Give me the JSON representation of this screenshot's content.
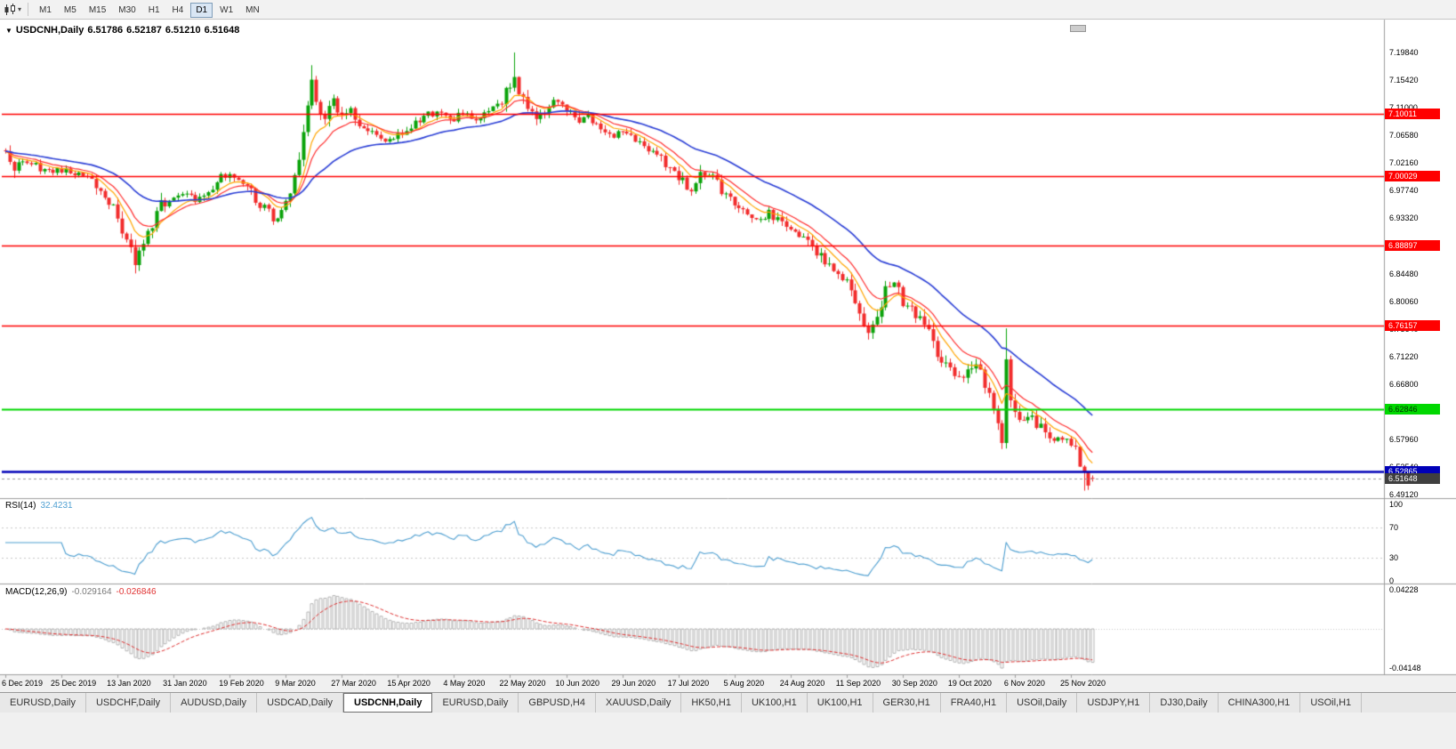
{
  "colors": {
    "bull": "#0AA30A",
    "bear": "#F22C2C",
    "level_red": "#FF0000",
    "level_green": "#00D800",
    "level_blue": "#0000B8",
    "current_line": "#9A9A9A",
    "current_tag_bg": "#3F3F3F",
    "rsi_line": "#4E9FD1",
    "macd_hist": "#B4B4B4",
    "macd_signal": "#E03232"
  },
  "toolbar": {
    "chart_type_icon": "candlestick-chart-icon",
    "dropdown_glyph": "▾",
    "timeframes": [
      "M1",
      "M5",
      "M15",
      "M30",
      "H1",
      "H4",
      "D1",
      "W1",
      "MN"
    ],
    "active_timeframe": "D1"
  },
  "chart": {
    "collapse_icon": "▼",
    "title_symbol": "USDCNH,Daily",
    "ohlc": {
      "open": "6.51786",
      "high": "6.52187",
      "low": "6.51210",
      "close": "6.51648"
    },
    "price_axis_labels": [
      "7.19840",
      "7.15420",
      "7.11000",
      "7.06580",
      "7.02160",
      "6.97740",
      "6.93320",
      "6.88900",
      "6.84480",
      "6.80060",
      "6.75640",
      "6.71220",
      "6.66800",
      "6.62380",
      "6.57960",
      "6.53540",
      "6.49120"
    ],
    "levels": [
      {
        "price": 7.10011,
        "label": "7.10011",
        "color": "#FF0000",
        "text_color": "#FFFFFF",
        "width": 1.6
      },
      {
        "price": 7.00029,
        "label": "7.00029",
        "color": "#FF0000",
        "text_color": "#FFFFFF",
        "width": 1.6
      },
      {
        "price": 6.88897,
        "label": "6.88897",
        "color": "#FF0000",
        "text_color": "#FFFFFF",
        "width": 1.6
      },
      {
        "price": 6.76157,
        "label": "6.76157",
        "color": "#FF0000",
        "text_color": "#FFFFFF",
        "width": 1.6
      },
      {
        "price": 6.62846,
        "label": "6.62846",
        "color": "#00D800",
        "text_color": "#003300",
        "width": 2
      },
      {
        "price": 6.52865,
        "label": "6.52865",
        "color": "#0000B8",
        "text_color": "#FFFFFF",
        "width": 2.6
      }
    ],
    "current_price": {
      "price": 6.51648,
      "label": "6.51648"
    },
    "date_labels": [
      "6 Dec 2019",
      "25 Dec 2019",
      "13 Jan 2020",
      "31 Jan 2020",
      "19 Feb 2020",
      "9 Mar 2020",
      "27 Mar 2020",
      "15 Apr 2020",
      "4 May 2020",
      "22 May 2020",
      "10 Jun 2020",
      "29 Jun 2020",
      "17 Jul 2020",
      "5 Aug 2020",
      "24 Aug 2020",
      "11 Sep 2020",
      "30 Sep 2020",
      "19 Oct 2020",
      "6 Nov 2020",
      "25 Nov 2020"
    ]
  },
  "rsi": {
    "name": "RSI(14)",
    "value": "32.4231",
    "line_color": "#4E9FD1",
    "axis": [
      {
        "v": 100,
        "label": "100"
      },
      {
        "v": 70,
        "label": "70"
      },
      {
        "v": 30,
        "label": "30"
      },
      {
        "v": 0,
        "label": "0"
      }
    ],
    "dashed_levels": [
      70,
      30
    ]
  },
  "macd": {
    "name": "MACD(12,26,9)",
    "value_main": "-0.029164",
    "value_signal": "-0.026846",
    "axis_top": "0.04228",
    "axis_bottom": "-0.04148"
  },
  "tabs": {
    "active_index": 4,
    "items": [
      "EURUSD,Daily",
      "USDCHF,Daily",
      "AUDUSD,Daily",
      "USDCAD,Daily",
      "USDCNH,Daily",
      "EURUSD,Daily",
      "GBPUSD,H4",
      "XAUUSD,Daily",
      "HK50,H1",
      "UK100,H1",
      "UK100,H1",
      "GER30,H1",
      "FRA40,H1",
      "USOil,Daily",
      "USDJPY,H1",
      "DJ30,Daily",
      "CHINA300,H1",
      "USOil,H1"
    ]
  },
  "chart_data": {
    "type": "candlestick",
    "symbol": "USDCNH",
    "timeframe": "Daily",
    "ylim": [
      6.4912,
      7.1984
    ],
    "y_ticks": [
      7.1984,
      7.1542,
      7.11,
      7.0658,
      7.0216,
      6.9774,
      6.9332,
      6.889,
      6.8448,
      6.8006,
      6.7564,
      6.7122,
      6.668,
      6.6238,
      6.5796,
      6.5354,
      6.4912
    ],
    "x_tick_indices": [
      0,
      13,
      26,
      39,
      52,
      65,
      78,
      91,
      104,
      117,
      130,
      143,
      156,
      169,
      182,
      195,
      208,
      221,
      234,
      247
    ],
    "candle_count": 253,
    "render_seed": 90210,
    "last_candle": {
      "open": 6.51786,
      "high": 6.52187,
      "low": 6.5121,
      "close": 6.51648
    },
    "support_resistance": [
      7.10011,
      7.00029,
      6.88897,
      6.76157,
      6.62846,
      6.52865
    ],
    "indicators": [
      {
        "name": "RSI",
        "period": 14,
        "current_value": 32.4231
      },
      {
        "name": "MACD",
        "fast": 12,
        "slow": 26,
        "signal": 9,
        "current_values": [
          -0.029164,
          -0.026846
        ]
      }
    ],
    "moving_averages": [
      {
        "period": 8,
        "color": "#FFA500",
        "width": 1.2
      },
      {
        "period": 13,
        "color": "#FF3030",
        "width": 1.2
      },
      {
        "period": 34,
        "color": "#2B3FD6",
        "width": 1.6
      }
    ],
    "price_anchors": [
      [
        0,
        7.042
      ],
      [
        2,
        7.018
      ],
      [
        5,
        7.024
      ],
      [
        8,
        7.012
      ],
      [
        11,
        7.008
      ],
      [
        14,
        7.012
      ],
      [
        17,
        7.004
      ],
      [
        20,
        6.996
      ],
      [
        23,
        6.972
      ],
      [
        26,
        6.94
      ],
      [
        28,
        6.896
      ],
      [
        30,
        6.866
      ],
      [
        32,
        6.886
      ],
      [
        34,
        6.924
      ],
      [
        36,
        6.952
      ],
      [
        38,
        6.966
      ],
      [
        41,
        6.976
      ],
      [
        44,
        6.962
      ],
      [
        47,
        6.98
      ],
      [
        50,
        6.998
      ],
      [
        52,
        7.006
      ],
      [
        54,
        6.998
      ],
      [
        56,
        6.982
      ],
      [
        59,
        6.956
      ],
      [
        62,
        6.934
      ],
      [
        64,
        6.944
      ],
      [
        66,
        6.976
      ],
      [
        68,
        7.03
      ],
      [
        70,
        7.118
      ],
      [
        71,
        7.148
      ],
      [
        72,
        7.112
      ],
      [
        74,
        7.09
      ],
      [
        76,
        7.118
      ],
      [
        78,
        7.095
      ],
      [
        80,
        7.112
      ],
      [
        82,
        7.085
      ],
      [
        85,
        7.066
      ],
      [
        88,
        7.058
      ],
      [
        91,
        7.068
      ],
      [
        94,
        7.08
      ],
      [
        97,
        7.094
      ],
      [
        100,
        7.106
      ],
      [
        103,
        7.09
      ],
      [
        106,
        7.1
      ],
      [
        109,
        7.094
      ],
      [
        112,
        7.104
      ],
      [
        115,
        7.118
      ],
      [
        117,
        7.148
      ],
      [
        118,
        7.162
      ],
      [
        119,
        7.138
      ],
      [
        121,
        7.11
      ],
      [
        123,
        7.094
      ],
      [
        125,
        7.108
      ],
      [
        127,
        7.118
      ],
      [
        129,
        7.112
      ],
      [
        131,
        7.102
      ],
      [
        133,
        7.088
      ],
      [
        135,
        7.094
      ],
      [
        137,
        7.082
      ],
      [
        139,
        7.072
      ],
      [
        141,
        7.066
      ],
      [
        143,
        7.07
      ],
      [
        145,
        7.06
      ],
      [
        147,
        7.055
      ],
      [
        149,
        7.044
      ],
      [
        151,
        7.034
      ],
      [
        153,
        7.02
      ],
      [
        155,
        7.005
      ],
      [
        157,
        6.99
      ],
      [
        159,
        6.98
      ],
      [
        161,
        6.998
      ],
      [
        163,
        7.003
      ],
      [
        165,
        6.99
      ],
      [
        167,
        6.97
      ],
      [
        169,
        6.955
      ],
      [
        171,
        6.945
      ],
      [
        173,
        6.935
      ],
      [
        175,
        6.93
      ],
      [
        177,
        6.94
      ],
      [
        179,
        6.931
      ],
      [
        181,
        6.92
      ],
      [
        183,
        6.91
      ],
      [
        185,
        6.903
      ],
      [
        187,
        6.888
      ],
      [
        189,
        6.869
      ],
      [
        191,
        6.853
      ],
      [
        193,
        6.843
      ],
      [
        195,
        6.836
      ],
      [
        197,
        6.8
      ],
      [
        199,
        6.76
      ],
      [
        200,
        6.748
      ],
      [
        202,
        6.78
      ],
      [
        204,
        6.816
      ],
      [
        206,
        6.826
      ],
      [
        208,
        6.802
      ],
      [
        210,
        6.79
      ],
      [
        212,
        6.773
      ],
      [
        214,
        6.748
      ],
      [
        216,
        6.718
      ],
      [
        218,
        6.7
      ],
      [
        220,
        6.684
      ],
      [
        222,
        6.673
      ],
      [
        224,
        6.7
      ],
      [
        226,
        6.688
      ],
      [
        228,
        6.65
      ],
      [
        230,
        6.6
      ],
      [
        231,
        6.572
      ],
      [
        232,
        6.7
      ],
      [
        233,
        6.64
      ],
      [
        234,
        6.618
      ],
      [
        236,
        6.601
      ],
      [
        238,
        6.616
      ],
      [
        240,
        6.596
      ],
      [
        242,
        6.578
      ],
      [
        244,
        6.585
      ],
      [
        246,
        6.579
      ],
      [
        248,
        6.56
      ],
      [
        250,
        6.528
      ],
      [
        251,
        6.515
      ],
      [
        252,
        6.5165
      ]
    ],
    "wick_overrides": [
      {
        "i": 30,
        "low": 6.845
      },
      {
        "i": 71,
        "high": 7.178
      },
      {
        "i": 118,
        "high": 7.1984
      },
      {
        "i": 232,
        "high": 6.757,
        "low": 6.568
      },
      {
        "i": 250,
        "low": 6.4975
      }
    ]
  }
}
